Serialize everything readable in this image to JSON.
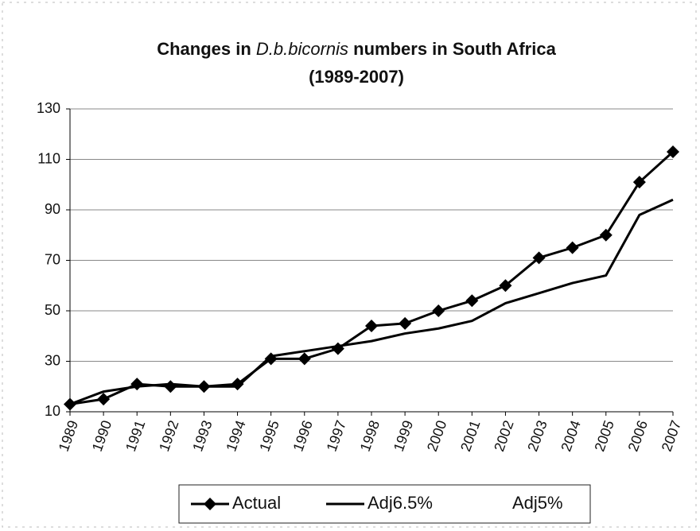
{
  "chart_data": {
    "type": "line",
    "title": [
      "Changes in ",
      "D.b.bicornis",
      "  numbers in South Africa",
      "(1989-2007)"
    ],
    "categories": [
      "1989",
      "1990",
      "1991",
      "1992",
      "1993",
      "1994",
      "1995",
      "1996",
      "1997",
      "1998",
      "1999",
      "2000",
      "2001",
      "2002",
      "2003",
      "2004",
      "2005",
      "2006",
      "2007"
    ],
    "series": [
      {
        "name": "Actual",
        "color": "#000000",
        "marker": "diamond",
        "values": [
          13,
          15,
          21,
          20,
          20,
          21,
          31,
          31,
          35,
          44,
          45,
          50,
          54,
          60,
          71,
          75,
          80,
          101,
          113
        ]
      },
      {
        "name": "Adj6.5%",
        "color": "#000000",
        "values": [
          13,
          18,
          20,
          21,
          20,
          20,
          32,
          34,
          36,
          38,
          41,
          43,
          46,
          53,
          57,
          61,
          64,
          88,
          94
        ]
      },
      {
        "name": "Adj5%",
        "color": "#ffffff",
        "values": [
          null,
          null,
          null,
          null,
          null,
          null,
          null,
          null,
          null,
          null,
          null,
          null,
          null,
          null,
          null,
          null,
          null,
          null,
          null
        ]
      }
    ],
    "ylim": [
      10,
      130
    ],
    "yticks": [
      10,
      30,
      50,
      70,
      90,
      110,
      130
    ],
    "grid": true,
    "legend": "bottom"
  }
}
